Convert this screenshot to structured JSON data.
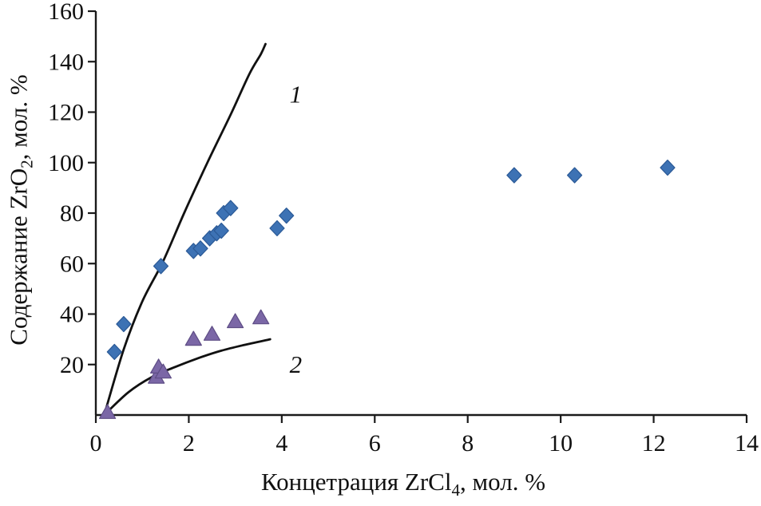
{
  "page": {
    "background": "#ffffff"
  },
  "chart_data": {
    "type": "scatter",
    "title": "",
    "xlabel": "Концетрация ZrCl₄, мол. %",
    "xlabel_parts": [
      {
        "text": "Концетрация ZrCl"
      },
      {
        "text": "4",
        "sub": true
      },
      {
        "text": ", мол. %"
      }
    ],
    "ylabel": "Содержание ZrO₂, мол. %",
    "ylabel_parts": [
      {
        "text": "Содержание ZrO"
      },
      {
        "text": "2",
        "sub": true
      },
      {
        "text": ", мол. %"
      }
    ],
    "xlim": [
      0,
      14
    ],
    "ylim": [
      0,
      160
    ],
    "x_ticks": [
      0,
      2,
      4,
      6,
      8,
      10,
      12,
      14
    ],
    "y_ticks": [
      20,
      40,
      60,
      80,
      100,
      120,
      140,
      160
    ],
    "grid": false,
    "legend_position": "none",
    "axis_color": "#1a1a1a",
    "series": [
      {
        "name": "series-1-diamonds",
        "marker": "diamond",
        "color": "#3d72b4",
        "edge_color": "#2b5a97",
        "points": [
          [
            0.4,
            25
          ],
          [
            0.6,
            36
          ],
          [
            1.4,
            59
          ],
          [
            2.1,
            65
          ],
          [
            2.25,
            66
          ],
          [
            2.45,
            70
          ],
          [
            2.6,
            72
          ],
          [
            2.7,
            73
          ],
          [
            2.75,
            80
          ],
          [
            2.9,
            82
          ],
          [
            3.9,
            74
          ],
          [
            4.1,
            79
          ],
          [
            9.0,
            95
          ],
          [
            10.3,
            95
          ],
          [
            12.3,
            98
          ]
        ]
      },
      {
        "name": "series-2-triangles",
        "marker": "triangle",
        "color": "#7b67a6",
        "edge_color": "#5e4d85",
        "points": [
          [
            0.25,
            1
          ],
          [
            1.3,
            15
          ],
          [
            1.35,
            19
          ],
          [
            1.45,
            17
          ],
          [
            2.1,
            30
          ],
          [
            2.5,
            32
          ],
          [
            3.0,
            37
          ],
          [
            3.55,
            38.5
          ]
        ]
      }
    ],
    "curves": [
      {
        "label": "1",
        "color": "#111111",
        "points": [
          [
            0.18,
            0
          ],
          [
            0.6,
            26
          ],
          [
            1.0,
            45
          ],
          [
            1.45,
            61
          ],
          [
            1.9,
            80
          ],
          [
            2.4,
            100
          ],
          [
            2.9,
            119
          ],
          [
            3.3,
            135
          ],
          [
            3.55,
            143
          ],
          [
            3.65,
            147
          ]
        ]
      },
      {
        "label": "2",
        "color": "#111111",
        "points": [
          [
            0.18,
            0
          ],
          [
            0.7,
            9
          ],
          [
            1.2,
            15
          ],
          [
            1.7,
            19
          ],
          [
            2.2,
            22.5
          ],
          [
            2.7,
            25.5
          ],
          [
            3.2,
            27.8
          ],
          [
            3.75,
            30
          ]
        ]
      }
    ],
    "curve_labels": [
      {
        "text": "1",
        "x": 4.3,
        "y": 127
      },
      {
        "text": "2",
        "x": 4.3,
        "y": 20
      }
    ]
  }
}
